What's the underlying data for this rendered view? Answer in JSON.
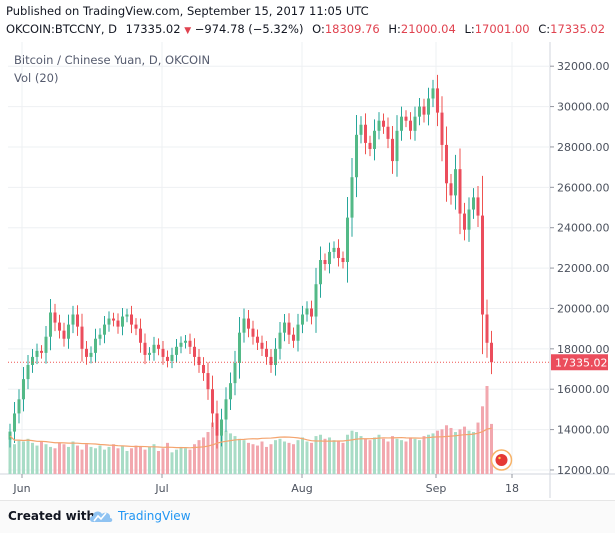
{
  "header": {
    "published": "Published on TradingView.com, September 15, 2017 11:05 UTC",
    "symbol": "OKCOIN:BTCCNY, D",
    "last": "17335.02",
    "change": "−974.78 (−5.32%)",
    "open_label": "O:",
    "open": "18309.76",
    "high_label": "H:",
    "high": "21000.04",
    "low_label": "L:",
    "low": "17001.00",
    "close_label": "C:",
    "close": "17335.02"
  },
  "legend": {
    "symbol": "Bitcoin / Chinese Yuan, D, OKCOIN",
    "volume": "Vol (20)"
  },
  "footer": {
    "created": "Created with",
    "brand": "TradingView"
  },
  "colors": {
    "up": "#26a69a",
    "up_fill": "#53b987",
    "down": "#ef5350",
    "down_fill": "#eb4d5c",
    "ma_line": "#f4a46e",
    "grid": "#eef0f3",
    "axis_text": "#4c525e",
    "last_price_bg": "#eb4d5c"
  },
  "chart_data": {
    "type": "candlestick",
    "title": "Bitcoin / Chinese Yuan, D, OKCOIN",
    "y_axis": {
      "ticks": [
        "12000.00",
        "14000.00",
        "16000.00",
        "18000.00",
        "20000.00",
        "22000.00",
        "24000.00",
        "26000.00",
        "28000.00",
        "30000.00",
        "32000.00"
      ],
      "range": [
        11800,
        33000
      ],
      "position": "right"
    },
    "x_axis": {
      "ticks": [
        "Jun",
        "Jul",
        "Aug",
        "Sep",
        "18"
      ]
    },
    "last_price_label": "17335.02",
    "volume_ma_label": "Vol (20)",
    "grid": true,
    "close": [
      13900,
      14800,
      15500,
      16500,
      17200,
      17600,
      17900,
      17800,
      18600,
      19800,
      19300,
      18900,
      18500,
      19200,
      19700,
      19100,
      18000,
      17600,
      17800,
      18500,
      18700,
      19200,
      19500,
      19400,
      19100,
      19600,
      19700,
      19200,
      19000,
      18300,
      17700,
      17800,
      18200,
      18000,
      17600,
      17400,
      17700,
      18100,
      18300,
      18400,
      18100,
      17600,
      17200,
      16800,
      16000,
      14800,
      13700,
      14500,
      15500,
      16300,
      17300,
      18800,
      19500,
      19000,
      18600,
      18300,
      18000,
      17600,
      17200,
      18000,
      18800,
      19300,
      18700,
      18400,
      19200,
      19700,
      20000,
      19600,
      21200,
      22400,
      22200,
      22800,
      23000,
      22500,
      22300,
      24500,
      26500,
      28600,
      29100,
      28200,
      27900,
      28800,
      29300,
      29000,
      28400,
      27300,
      28800,
      29500,
      29300,
      28800,
      29500,
      30000,
      29600,
      30400,
      30900,
      29700,
      28100,
      26200,
      25600,
      26900,
      24700,
      23900,
      24900,
      25500,
      24600,
      19700,
      18300,
      17335
    ],
    "volume": [
      2800,
      2200,
      2500,
      2400,
      2600,
      2300,
      2100,
      2400,
      2200,
      2000,
      1900,
      2300,
      2200,
      2000,
      2400,
      2100,
      1800,
      2200,
      2000,
      1900,
      2100,
      1800,
      2000,
      2200,
      1900,
      2100,
      1700,
      1900,
      2100,
      2000,
      1800,
      2000,
      2200,
      1700,
      1900,
      2300,
      1600,
      1800,
      2000,
      1900,
      1800,
      2200,
      2500,
      2700,
      3100,
      3800,
      4200,
      3600,
      3200,
      3000,
      2800,
      2600,
      2500,
      2300,
      2200,
      2100,
      2400,
      2000,
      2200,
      2500,
      2600,
      2400,
      2300,
      2200,
      2500,
      2700,
      2400,
      2300,
      2800,
      2900,
      2600,
      2700,
      2500,
      2400,
      2300,
      2900,
      3200,
      3100,
      2800,
      2600,
      2500,
      2700,
      2900,
      2600,
      2400,
      2800,
      2600,
      2500,
      2400,
      2700,
      2600,
      2500,
      2800,
      2900,
      3000,
      3200,
      3300,
      3600,
      3400,
      3100,
      3300,
      3500,
      3200,
      3100,
      3800,
      5000,
      6500,
      3700
    ]
  }
}
